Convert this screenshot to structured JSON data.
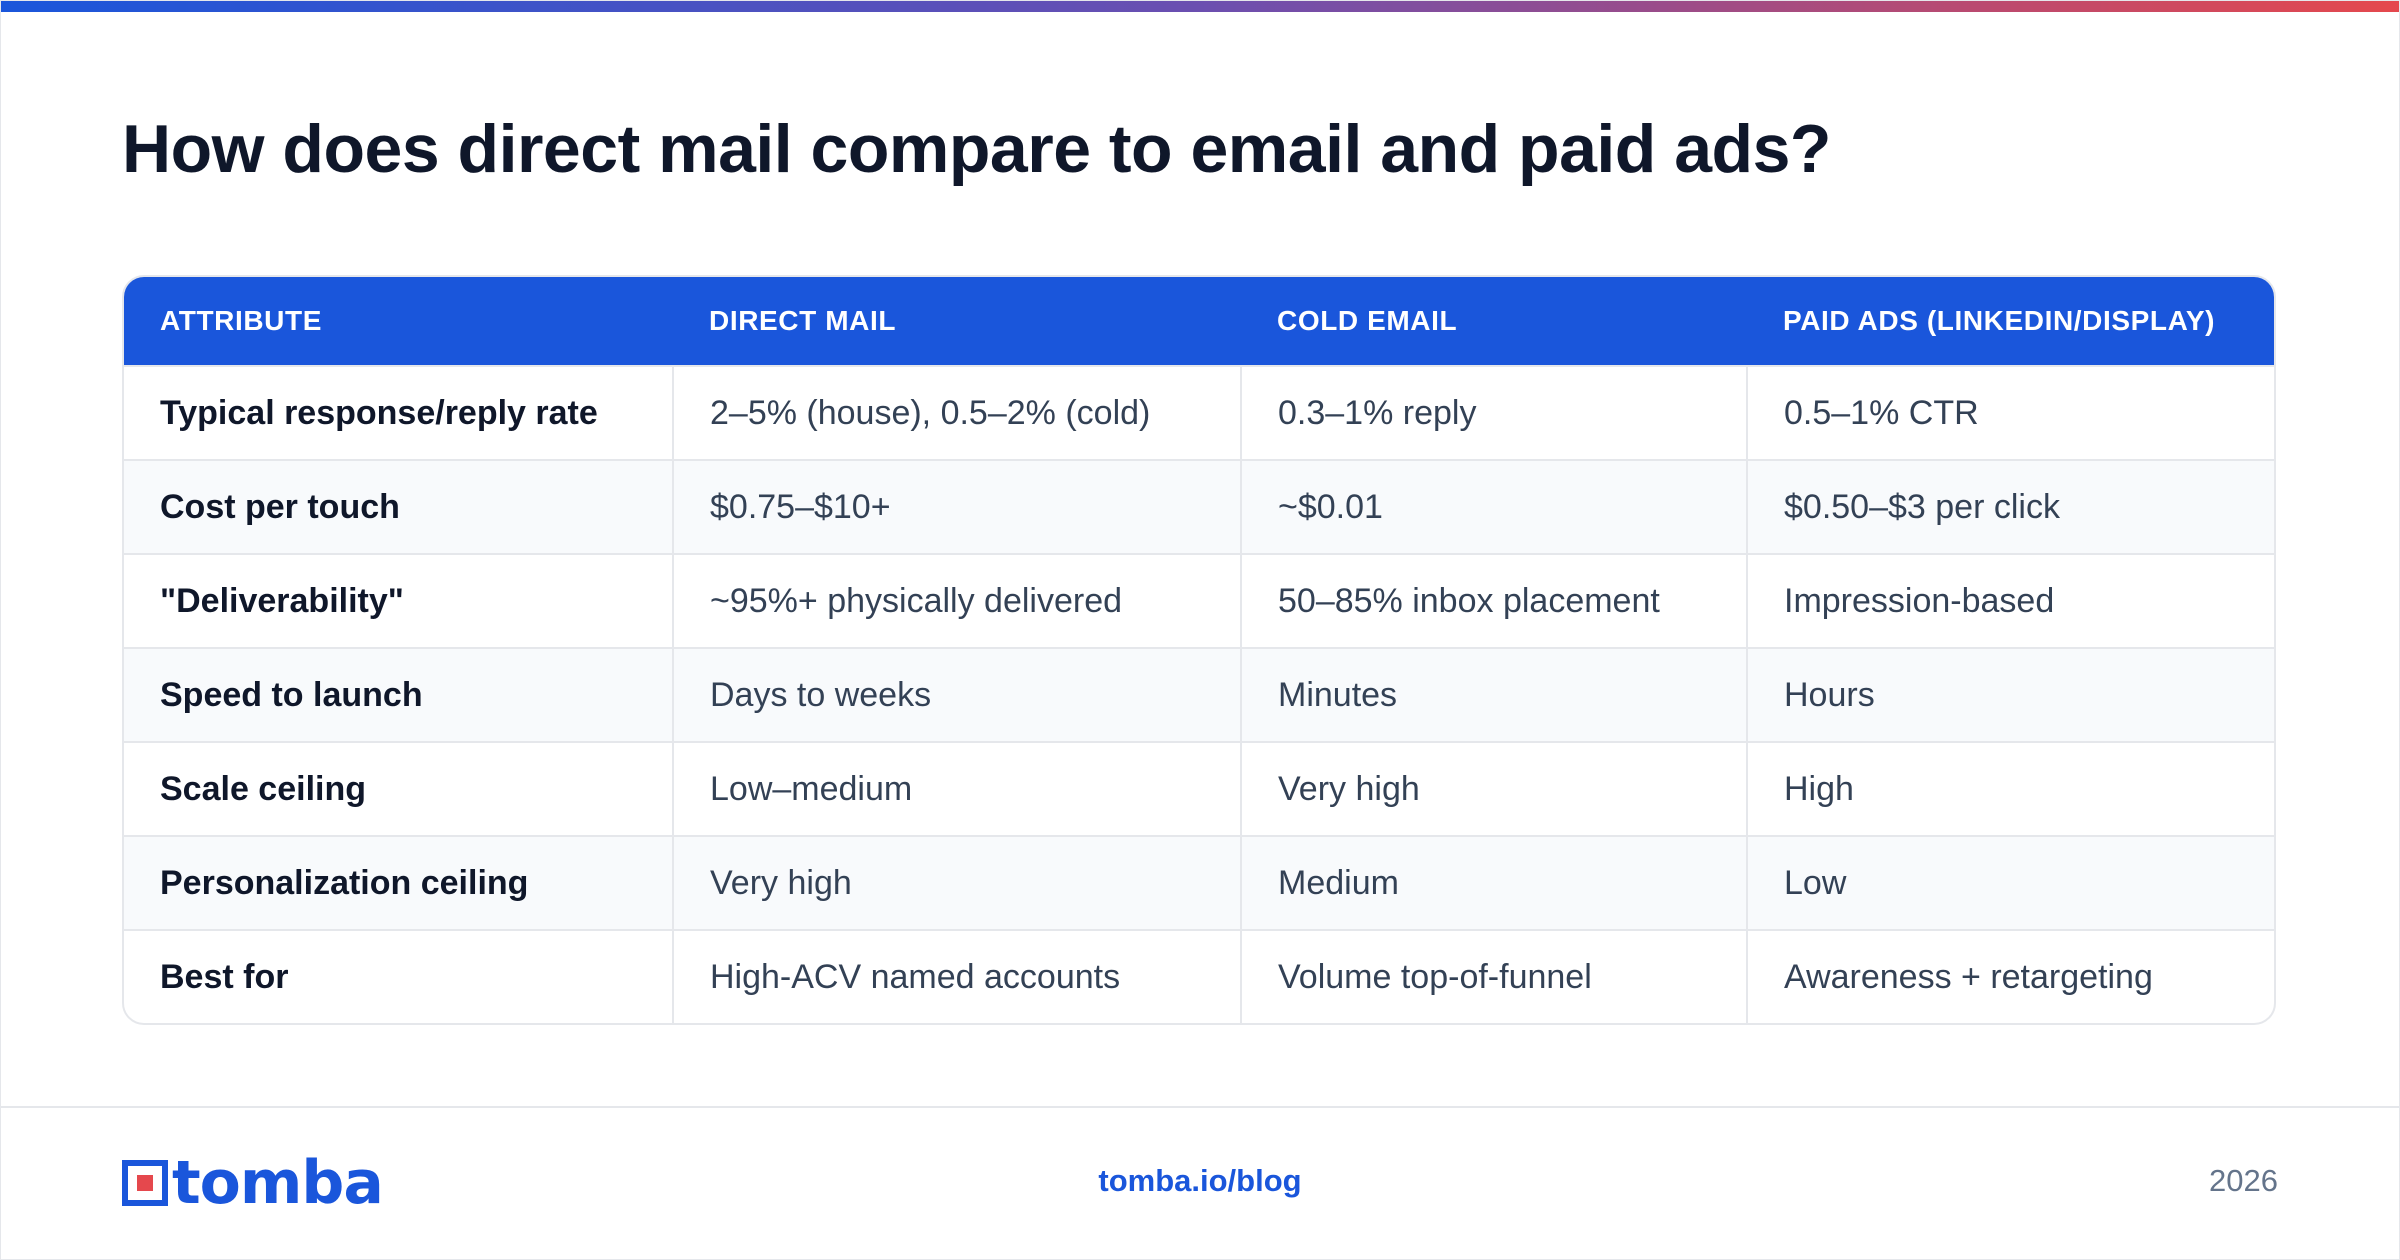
{
  "title": "How does direct mail compare to email and paid ads?",
  "table": {
    "headers": [
      "ATTRIBUTE",
      "DIRECT MAIL",
      "COLD EMAIL",
      "PAID ADS (LINKEDIN/DISPLAY)"
    ],
    "rows": [
      [
        "Typical response/reply rate",
        "2–5% (house), 0.5–2% (cold)",
        "0.3–1% reply",
        "0.5–1% CTR"
      ],
      [
        "Cost per touch",
        "$0.75–$10+",
        "~$0.01",
        "$0.50–$3 per click"
      ],
      [
        "\"Deliverability\"",
        "~95%+ physically delivered",
        "50–85% inbox placement",
        "Impression-based"
      ],
      [
        "Speed to launch",
        "Days to weeks",
        "Minutes",
        "Hours"
      ],
      [
        "Scale ceiling",
        "Low–medium",
        "Very high",
        "High"
      ],
      [
        "Personalization ceiling",
        "Very high",
        "Medium",
        "Low"
      ],
      [
        "Best for",
        "High-ACV named accounts",
        "Volume top-of-funnel",
        "Awareness + retargeting"
      ]
    ]
  },
  "footer": {
    "logo_text": "tomba",
    "link": "tomba.io/blog",
    "year": "2026"
  },
  "colors": {
    "accent": "#1a56db",
    "logo_red": "#e5484d"
  }
}
